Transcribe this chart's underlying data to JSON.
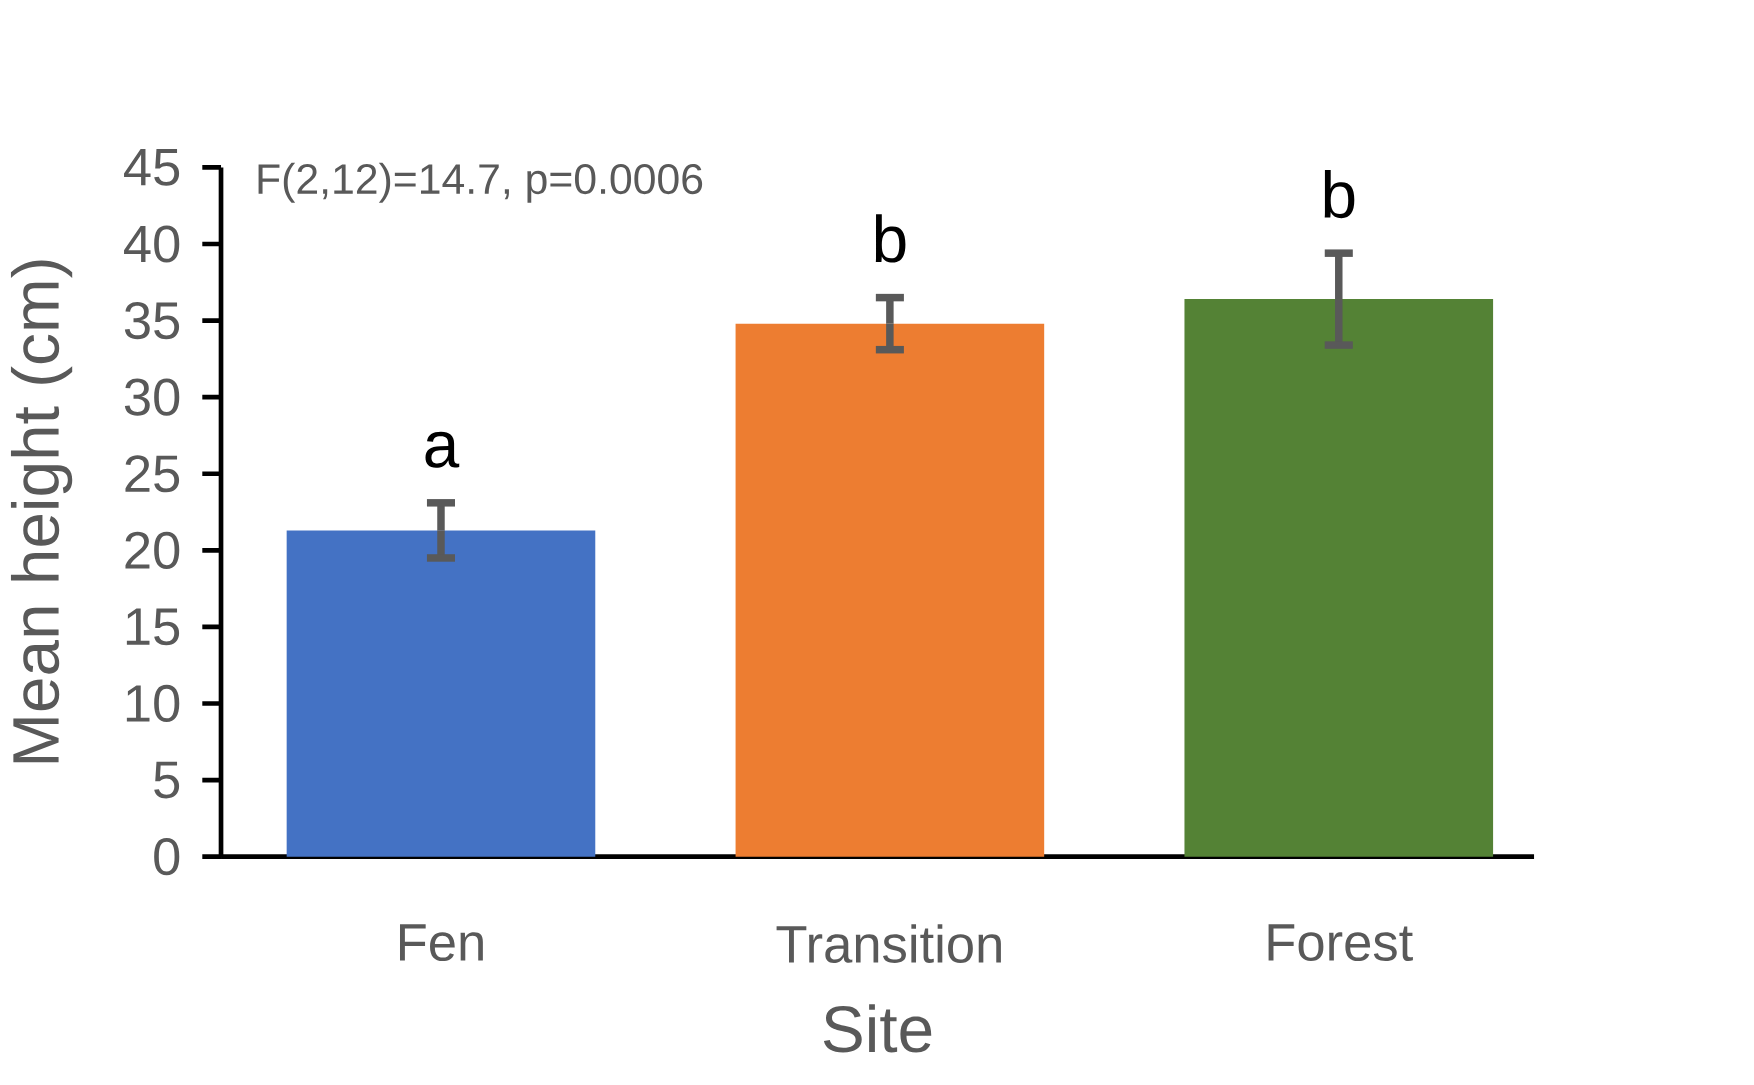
{
  "chart_data": {
    "type": "bar",
    "xlabel": "Site",
    "ylabel": "Mean height (cm)",
    "categories": [
      "Fen",
      "Transition",
      "Forest"
    ],
    "values": [
      21.3,
      34.8,
      36.4
    ],
    "colors": [
      "#4472c4",
      "#ed7d31",
      "#548235"
    ],
    "errors": [
      1.8,
      1.7,
      3.0
    ],
    "ylim": [
      0,
      45
    ],
    "yticks": [
      0,
      5,
      10,
      15,
      20,
      25,
      30,
      35,
      40,
      45
    ],
    "grid": false,
    "annotations": [
      "F(2,12)=14.7,  p=0.0006",
      "a",
      "b",
      "b"
    ]
  }
}
